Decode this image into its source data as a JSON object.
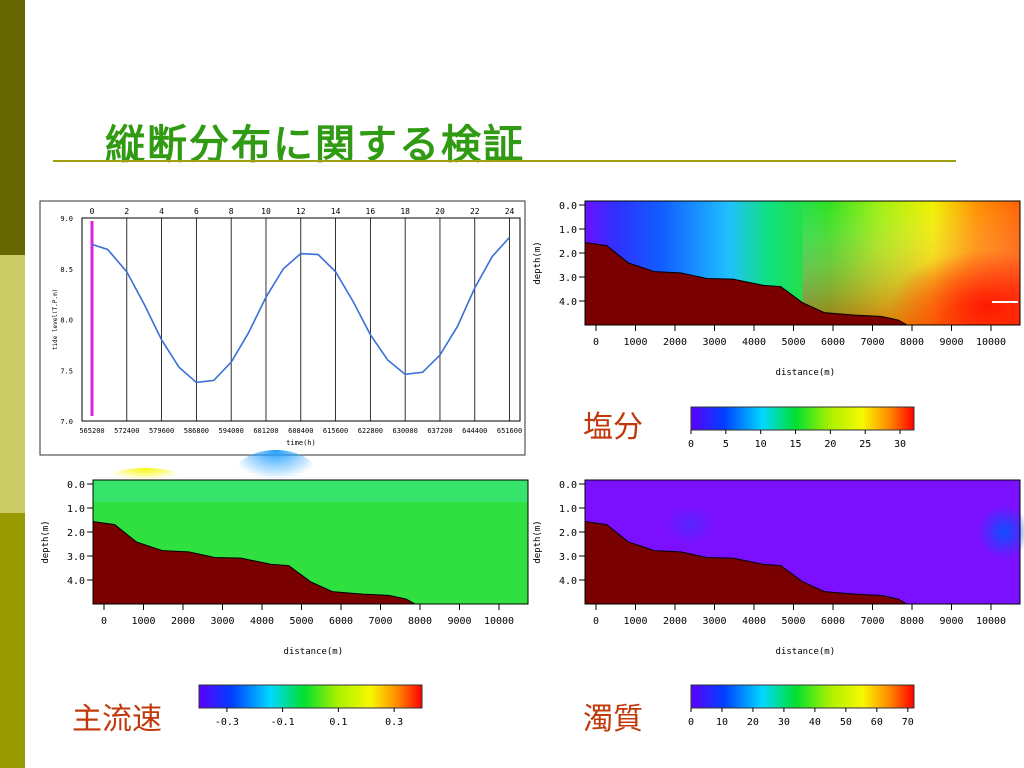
{
  "slide": {
    "title": "縦断分布に関する検証",
    "sidebar_colors": [
      "#666600",
      "#999900",
      "#cccc66",
      "#999900"
    ]
  },
  "chart_data": [
    {
      "type": "line",
      "panel": "tide-level",
      "top_axis": {
        "ticks": [
          "0",
          "2",
          "4",
          "6",
          "8",
          "10",
          "12",
          "14",
          "16",
          "18",
          "20",
          "22",
          "24"
        ]
      },
      "xlabel": "time(h)",
      "xticks": [
        "565200",
        "572400",
        "579600",
        "586800",
        "594000",
        "601200",
        "608400",
        "615600",
        "622800",
        "630000",
        "637200",
        "644400",
        "651600"
      ],
      "ylabel": "tide level(T.P.m)",
      "yticks": [
        "9.0",
        "8.5",
        "8.0",
        "7.5",
        "7.0"
      ],
      "ylim": [
        7.0,
        9.0
      ],
      "xlim": [
        0,
        24.6
      ],
      "marker_line": {
        "x": 0,
        "color": "#dd22dd"
      },
      "series": [
        {
          "color": "#3a6fd8",
          "x": [
            0,
            0.9,
            2,
            3,
            4,
            5,
            6,
            7,
            8,
            9,
            10,
            11,
            12,
            13,
            14,
            15,
            16,
            17,
            18,
            19,
            20,
            21,
            22,
            23,
            24
          ],
          "y": [
            8.74,
            8.69,
            8.47,
            8.15,
            7.8,
            7.53,
            7.38,
            7.4,
            7.58,
            7.87,
            8.22,
            8.5,
            8.65,
            8.64,
            8.47,
            8.18,
            7.85,
            7.6,
            7.46,
            7.48,
            7.65,
            7.93,
            8.31,
            8.62,
            8.81
          ]
        }
      ]
    },
    {
      "type": "heatmap",
      "panel": "salinity",
      "label": "塩分",
      "xlabel": "distance(m)",
      "ylabel": "depth(m)",
      "xticks": [
        "0",
        "1000",
        "2000",
        "3000",
        "4000",
        "5000",
        "6000",
        "7000",
        "8000",
        "9000",
        "10000"
      ],
      "yticks": [
        "0.0",
        "1.0",
        "2.0",
        "3.0",
        "4.0"
      ],
      "colorbar_ticks": [
        "0",
        "5",
        "10",
        "15",
        "20",
        "25",
        "30"
      ],
      "colorbar_range": [
        0,
        32
      ],
      "colormap": [
        "#5a00ff",
        "#0040ff",
        "#00d8ff",
        "#00e030",
        "#a8f000",
        "#f8f800",
        "#ff8800",
        "#ff0000"
      ]
    },
    {
      "type": "heatmap",
      "panel": "main-flow-velocity",
      "label": "主流速",
      "xlabel": "distance(m)",
      "ylabel": "depth(m)",
      "xticks": [
        "0",
        "1000",
        "2000",
        "3000",
        "4000",
        "5000",
        "6000",
        "7000",
        "8000",
        "9000",
        "10000"
      ],
      "yticks": [
        "0.0",
        "1.0",
        "2.0",
        "3.0",
        "4.0"
      ],
      "colorbar_ticks": [
        "-0.3",
        "-0.1",
        "0.1",
        "0.3"
      ],
      "colorbar_range": [
        -0.4,
        0.4
      ],
      "colormap": [
        "#5a00ff",
        "#0040ff",
        "#00d8ff",
        "#00e030",
        "#a8f000",
        "#f8f800",
        "#ff8800",
        "#ff0000"
      ]
    },
    {
      "type": "heatmap",
      "panel": "turbidity",
      "label": "濁質",
      "xlabel": "distance(m)",
      "ylabel": "depth(m)",
      "xticks": [
        "0",
        "1000",
        "2000",
        "3000",
        "4000",
        "5000",
        "6000",
        "7000",
        "8000",
        "9000",
        "10000"
      ],
      "yticks": [
        "0.0",
        "1.0",
        "2.0",
        "3.0",
        "4.0"
      ],
      "colorbar_ticks": [
        "0",
        "10",
        "20",
        "30",
        "40",
        "50",
        "60",
        "70"
      ],
      "colorbar_range": [
        0,
        72
      ],
      "colormap": [
        "#5a00ff",
        "#0040ff",
        "#00d8ff",
        "#00e030",
        "#a8f000",
        "#f8f800",
        "#ff8800",
        "#ff0000"
      ]
    }
  ]
}
